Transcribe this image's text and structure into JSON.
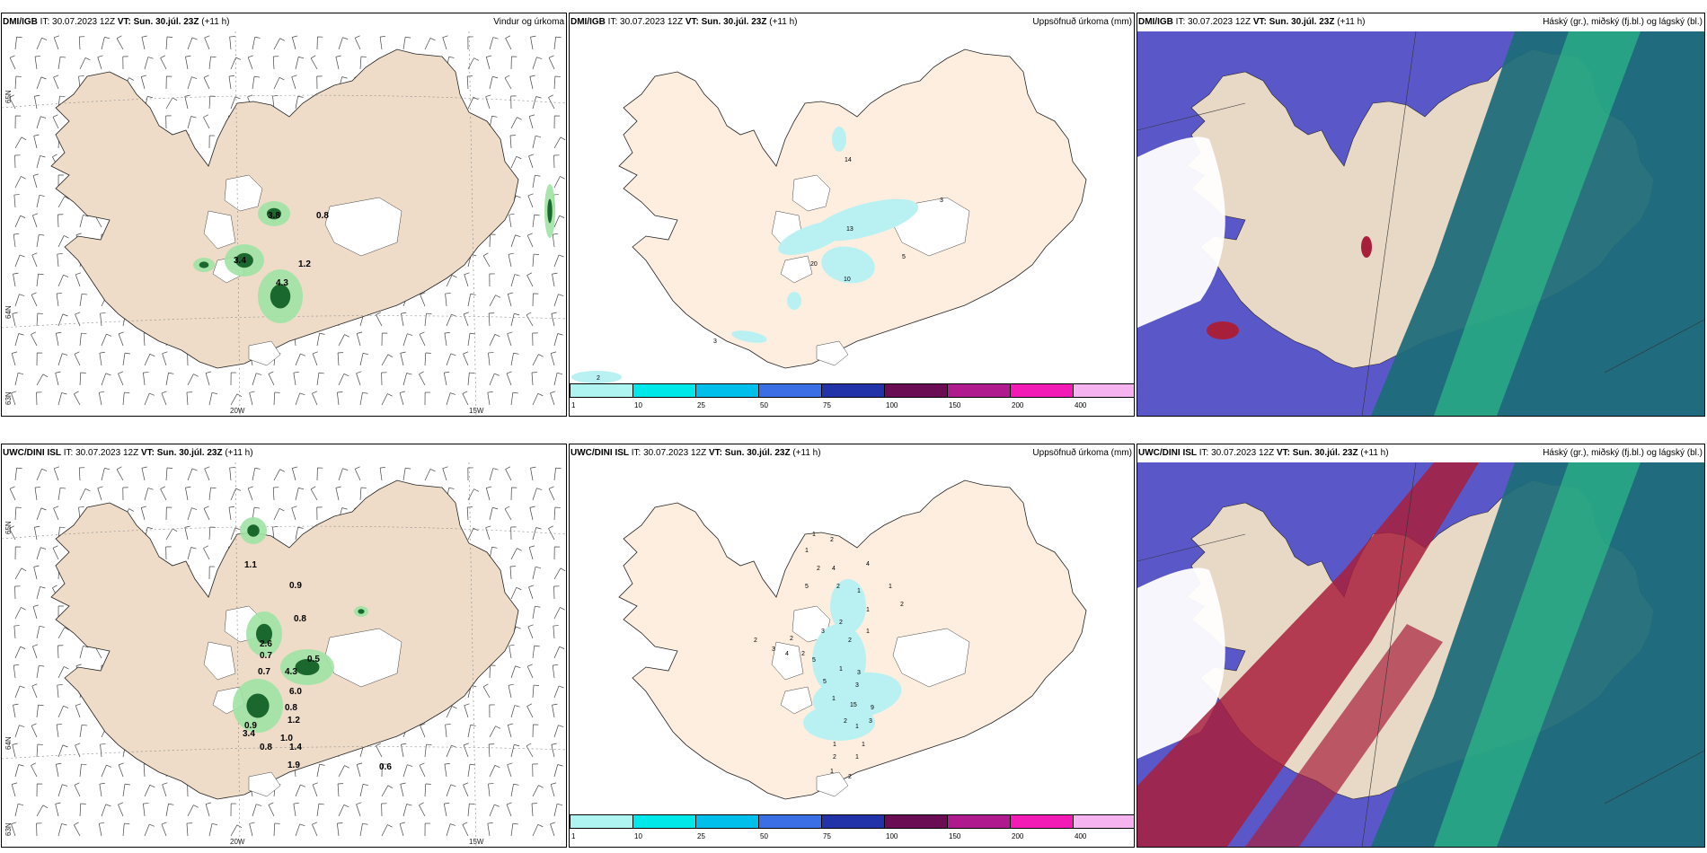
{
  "panels": [
    {
      "id": "top-wind",
      "model": "DMI/IGB",
      "it_label": "IT:",
      "it": "30.07.2023 12Z",
      "vt_label": "VT:",
      "vt": "Sun. 30.júl. 23Z",
      "lead": "(+11 h)",
      "right_title": "Vindur og úrkoma",
      "lat_labels": [
        "65N",
        "64N",
        "63N"
      ],
      "lon_labels": [
        "20W",
        "15W"
      ],
      "values": [
        "3.8",
        "0.8",
        "3.4",
        "1.2",
        "4.3"
      ]
    },
    {
      "id": "top-accum",
      "model": "DMI/IGB",
      "it_label": "IT:",
      "it": "30.07.2023 12Z",
      "vt_label": "VT:",
      "vt": "Sun. 30.júl. 23Z",
      "lead": "(+11 h)",
      "right_title": "Uppsöfnuð úrkoma (mm)",
      "values": [
        "14",
        "3",
        "13",
        "20",
        "10",
        "5",
        "3",
        "2"
      ]
    },
    {
      "id": "top-cloud",
      "model": "DMI/IGB",
      "it_label": "IT:",
      "it": "30.07.2023 12Z",
      "vt_label": "VT:",
      "vt": "Sun. 30.júl. 23Z",
      "lead": "(+11 h)",
      "right_title": "Háský (gr.), miðský (fj.bl.) og lágský (bl.)"
    },
    {
      "id": "bot-wind",
      "model": "UWC/DINI ISL",
      "it_label": "IT:",
      "it": "30.07.2023 12Z",
      "vt_label": "VT:",
      "vt": "Sun. 30.júl. 23Z",
      "lead": "(+11 h)",
      "right_title": "",
      "lat_labels": [
        "65N",
        "64N",
        "63N"
      ],
      "lon_labels": [
        "20W",
        "15W"
      ],
      "values": [
        "1.1",
        "0.9",
        "0.8",
        "2.6",
        "0.7",
        "0.5",
        "0.7",
        "4.3",
        "6.0",
        "1.2",
        "0.8",
        "0.9",
        "1.0",
        "3.4",
        "0.8",
        "1.4",
        "1.9",
        "0.6"
      ]
    },
    {
      "id": "bot-accum",
      "model": "UWC/DINI ISL",
      "it_label": "IT:",
      "it": "30.07.2023 12Z",
      "vt_label": "VT:",
      "vt": "Sun. 30.júl. 23Z",
      "lead": "(+11 h)",
      "right_title": "Uppsöfnuð úrkoma (mm)",
      "values": [
        "1",
        "2",
        "1",
        "2",
        "4",
        "4",
        "5",
        "2",
        "1",
        "1",
        "2",
        "1",
        "2",
        "3",
        "2",
        "1",
        "2",
        "2",
        "3",
        "4",
        "2",
        "5",
        "1",
        "3",
        "5",
        "3",
        "15",
        "1",
        "9",
        "2",
        "1",
        "1",
        "1",
        "2",
        "1",
        "1",
        "2",
        "3"
      ]
    },
    {
      "id": "bot-cloud",
      "model": "UWC/DINI ISL",
      "it_label": "IT:",
      "it": "30.07.2023 12Z",
      "vt_label": "VT:",
      "vt": "Sun. 30.júl. 23Z",
      "lead": "(+11 h)",
      "right_title": "Háský (gr.), miðský (fj.bl.) og lágský (bl.)"
    }
  ],
  "colorbar": {
    "ticks": [
      "1",
      "10",
      "25",
      "50",
      "75",
      "100",
      "150",
      "200",
      "400"
    ],
    "colors": [
      "#b0f4f2",
      "#00e8e8",
      "#00bfea",
      "#3a6fe6",
      "#2233aa",
      "#6a0d55",
      "#b01a8f",
      "#f21bb5",
      "#f5b3ef"
    ]
  },
  "colors": {
    "land": "#eedcc8",
    "land_accum": "#fdeee0",
    "precip_light": "#9ee3a4",
    "precip_dark": "#0b5a1f",
    "accum_light": "#b9f1f3",
    "sea_cloud": "#5a58c8",
    "high_cloud": "#1f6d7a",
    "mid_cloud": "#2fd08a",
    "low_cloud": "#a81f3c"
  }
}
